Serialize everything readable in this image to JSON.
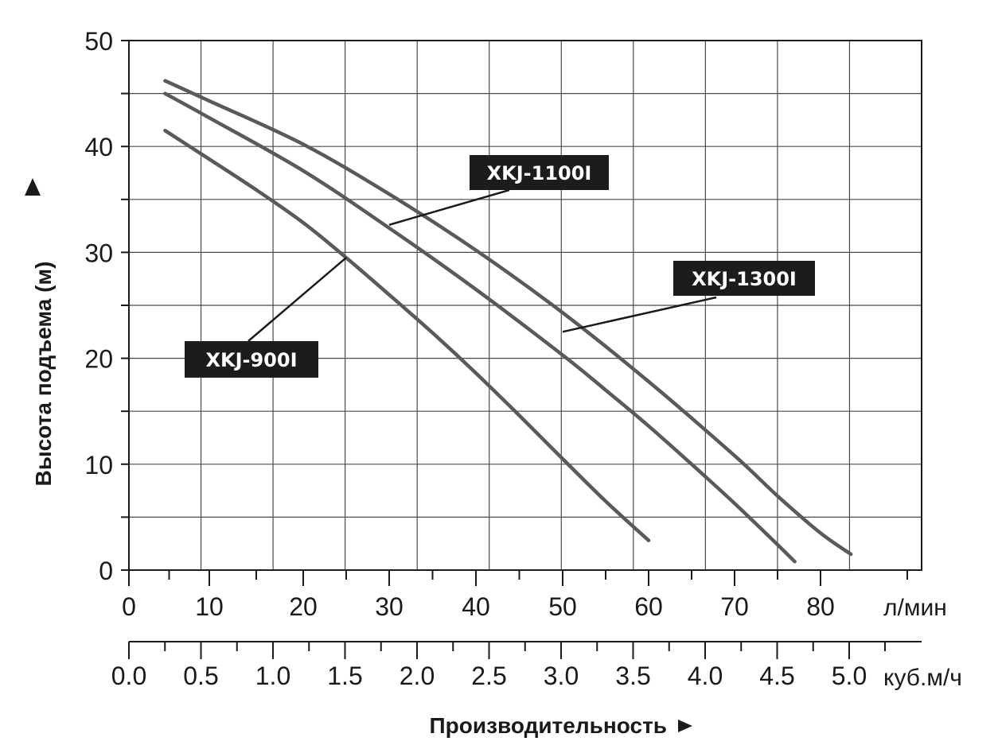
{
  "chart_data": {
    "type": "line",
    "title": "",
    "ylabel": "Высота подъема (м)",
    "xlabel": "Производительность",
    "x_unit": "л/мин",
    "x2_unit": "куб.м/ч",
    "xlim": [
      0,
      100
    ],
    "ylim": [
      0,
      50
    ],
    "grid": true,
    "y_ticks": [
      "0",
      "10",
      "20",
      "30",
      "40",
      "50"
    ],
    "x_ticks": [
      "0",
      "10",
      "20",
      "30",
      "40",
      "50",
      "60",
      "70",
      "80"
    ],
    "x2_ticks": [
      "0.0",
      "0.5",
      "1.0",
      "1.5",
      "2.0",
      "2.5",
      "3.0",
      "3.5",
      "4.0",
      "4.5",
      "5.0"
    ],
    "series": [
      {
        "name": "XKJ-900I",
        "x": [
          4.5,
          10,
          15,
          20,
          25,
          30,
          35,
          40,
          45,
          50,
          55,
          60
        ],
        "y": [
          41.5,
          38.8,
          35.9,
          32.8,
          29.5,
          26.0,
          22.4,
          18.6,
          14.6,
          10.5,
          6.5,
          2.8
        ]
      },
      {
        "name": "XKJ-1100I",
        "x": [
          4.5,
          10,
          20,
          30,
          40,
          50,
          55,
          60,
          65,
          70,
          75,
          77
        ],
        "y": [
          45.0,
          42.7,
          37.7,
          32.3,
          26.5,
          20.3,
          17.0,
          13.6,
          10.0,
          6.3,
          2.4,
          0.8
        ]
      },
      {
        "name": "XKJ-1300I",
        "x": [
          4.5,
          10,
          20,
          30,
          40,
          50,
          60,
          70,
          75,
          80,
          83.5
        ],
        "y": [
          46.2,
          44.3,
          40.2,
          35.5,
          30.2,
          24.3,
          17.8,
          10.8,
          7.0,
          3.5,
          1.5
        ]
      }
    ],
    "annotations": [
      {
        "label": "XKJ-1100I",
        "x": 30,
        "y": 32.6
      },
      {
        "label": "XKJ-1300I",
        "x": 50,
        "y": 22.5
      },
      {
        "label": "XKJ-900I",
        "x": 25,
        "y": 29.5
      }
    ]
  }
}
